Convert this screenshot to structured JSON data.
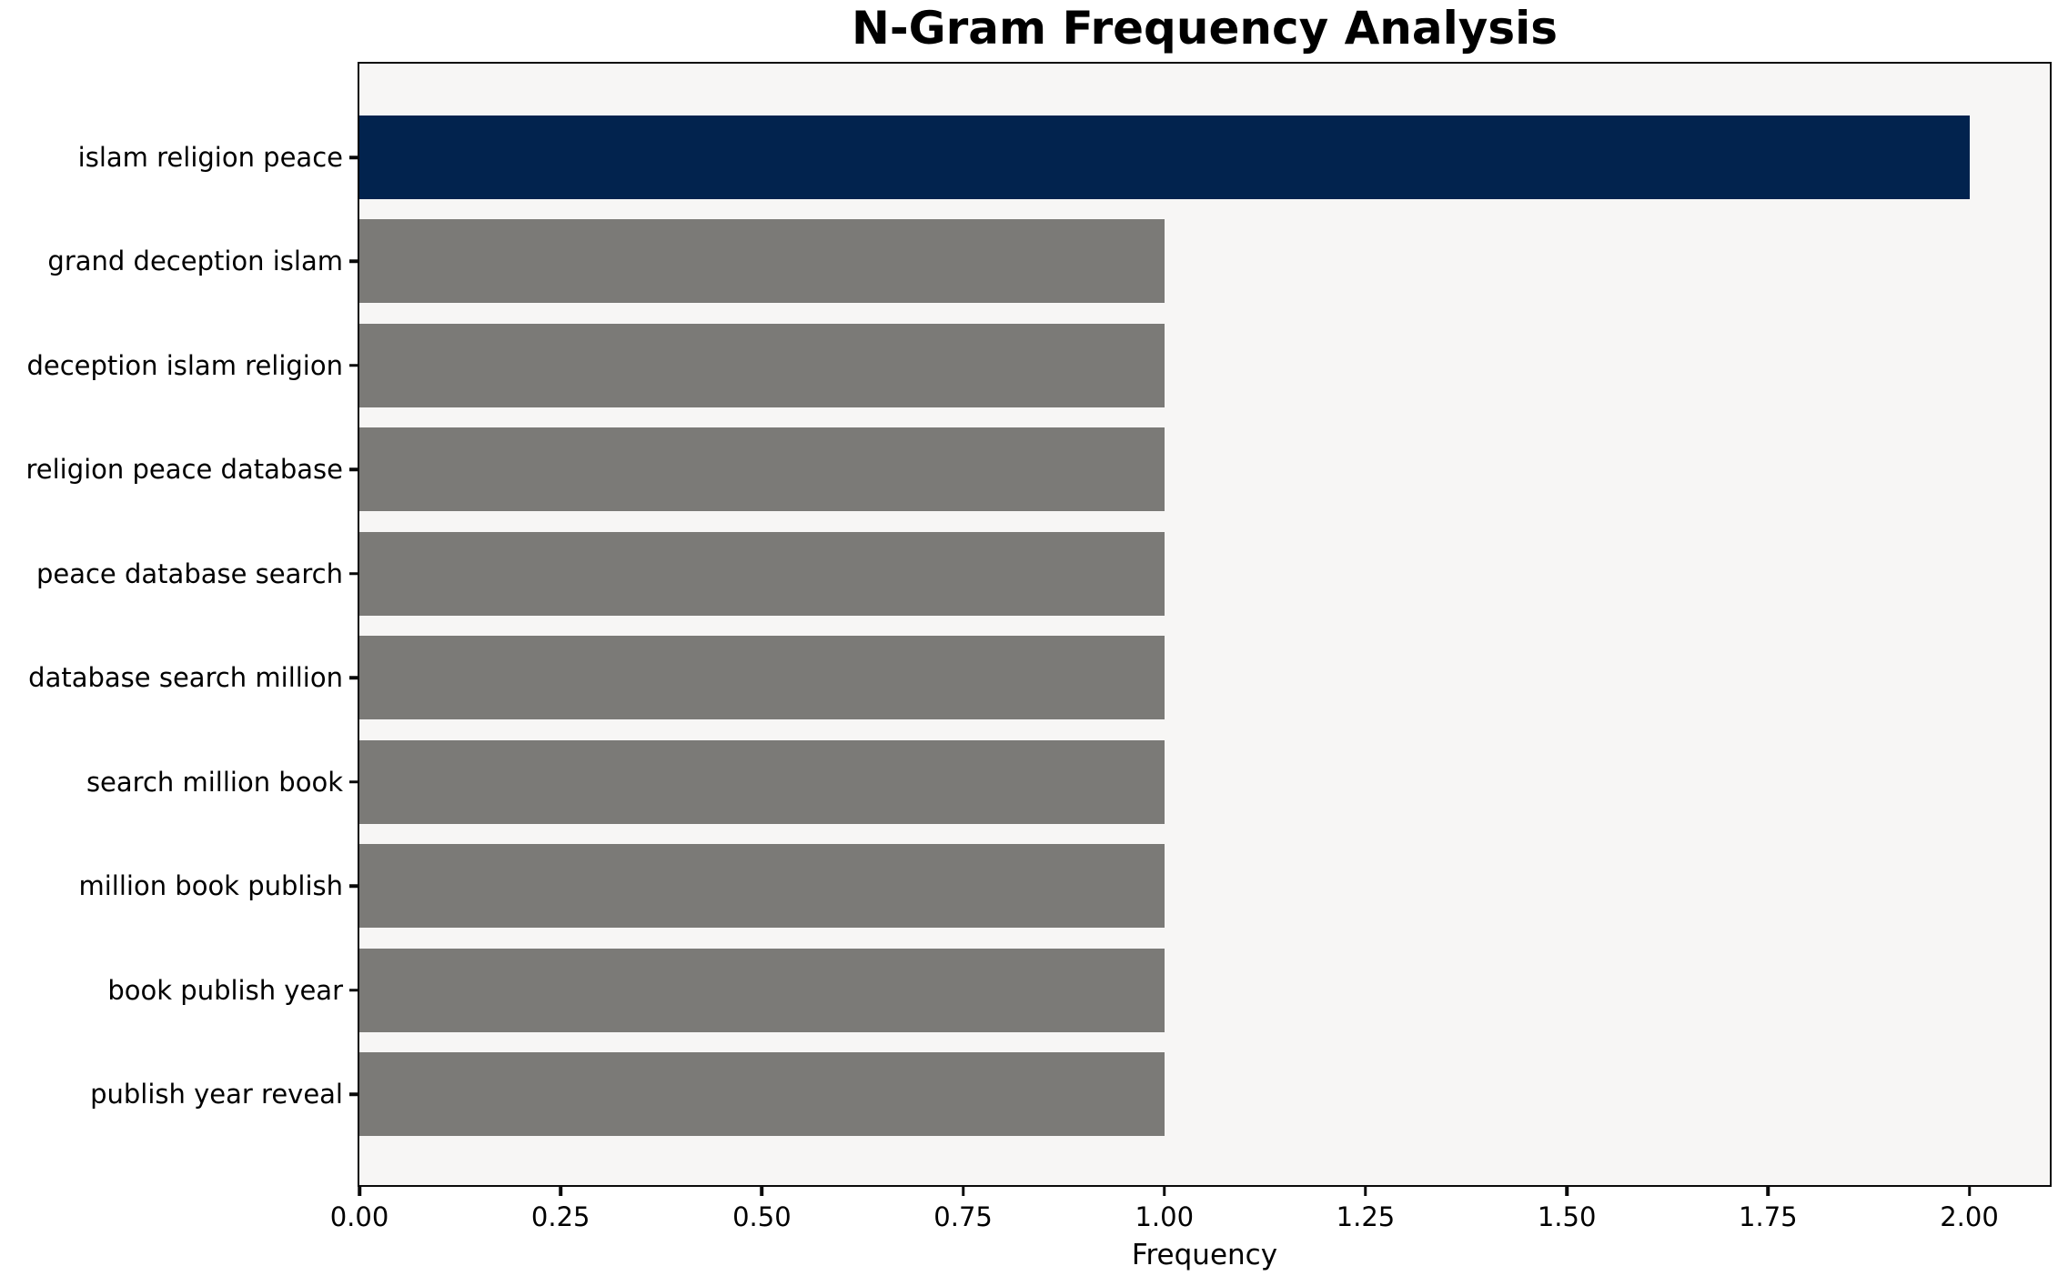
{
  "chart_data": {
    "type": "bar",
    "orientation": "horizontal",
    "title": "N-Gram Frequency Analysis",
    "xlabel": "Frequency",
    "ylabel": "",
    "categories": [
      "islam religion peace",
      "grand deception islam",
      "deception islam religion",
      "religion peace database",
      "peace database search",
      "database search million",
      "search million book",
      "million book publish",
      "book publish year",
      "publish year reveal"
    ],
    "values": [
      2,
      1,
      1,
      1,
      1,
      1,
      1,
      1,
      1,
      1
    ],
    "highlight_index": 0,
    "xlim": [
      0,
      2.1
    ],
    "xticks": [
      0,
      0.25,
      0.5,
      0.75,
      1.0,
      1.25,
      1.5,
      1.75,
      2.0
    ],
    "xtick_labels": [
      "0.00",
      "0.25",
      "0.50",
      "0.75",
      "1.00",
      "1.25",
      "1.50",
      "1.75",
      "2.00"
    ],
    "grid": false,
    "legend": null,
    "colors": {
      "highlight_bar": "#02234e",
      "default_bar": "#7b7a77",
      "plot_background": "#f7f6f5",
      "axis": "#0a0a0a",
      "text": "#000000"
    }
  }
}
